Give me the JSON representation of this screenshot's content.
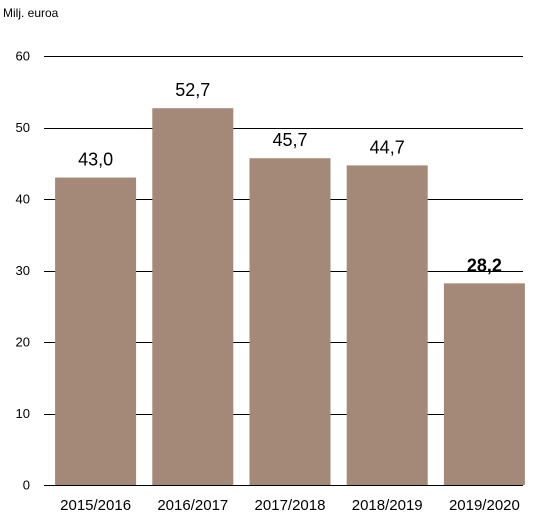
{
  "chart_data": {
    "type": "bar",
    "ylabel": "Milj. euroa",
    "xlabel": "",
    "title": "",
    "categories": [
      "2015/2016",
      "2016/2017",
      "2017/2018",
      "2018/2019",
      "2019/2020"
    ],
    "values": [
      43.0,
      52.7,
      45.7,
      44.7,
      28.2
    ],
    "data_labels": [
      "43,0",
      "52,7",
      "45,7",
      "44,7",
      "28,2"
    ],
    "bold_labels": [
      false,
      false,
      false,
      false,
      true
    ],
    "ylim": [
      0,
      60
    ],
    "yticks": [
      0,
      10,
      20,
      30,
      40,
      50,
      60
    ],
    "ytick_labels": [
      "0",
      "10",
      "20",
      "30",
      "40",
      "50",
      "60"
    ],
    "grid": true,
    "legend": "none",
    "bar_color": "#a48978",
    "grid_color": "#000000"
  }
}
